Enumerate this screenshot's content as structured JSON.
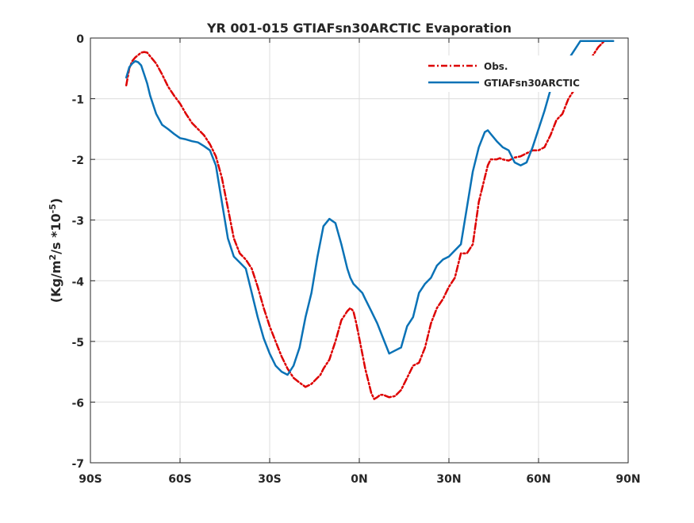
{
  "chart_data": {
    "type": "line",
    "title": "YR 001-015 GTIAFsn30ARCTIC Evaporation",
    "ylabel_parts": {
      "open": "(Kg/m",
      "sup1": "2",
      "mid": "/s *10",
      "sup2": "-5",
      "close": ")"
    },
    "xlim": [
      -90,
      90
    ],
    "ylim": [
      -7,
      0
    ],
    "xticks": [
      -90,
      -60,
      -30,
      0,
      30,
      60,
      90
    ],
    "xtick_labels": [
      "90S",
      "60S",
      "30S",
      "0N",
      "30N",
      "60N",
      "90N"
    ],
    "yticks": [
      0,
      -1,
      -2,
      -3,
      -4,
      -5,
      -6,
      -7
    ],
    "ytick_labels": [
      "0",
      "-1",
      "-2",
      "-3",
      "-4",
      "-5",
      "-6",
      "-7"
    ],
    "grid": true,
    "legend_position": "top-right",
    "series": [
      {
        "name": "Obs.",
        "color": "#dd0000",
        "style": "dashdot",
        "x": [
          -78,
          -77,
          -76,
          -75,
          -74,
          -73,
          -72,
          -71,
          -70,
          -68,
          -66,
          -64,
          -62,
          -60,
          -58,
          -56,
          -54,
          -52,
          -50,
          -48,
          -46,
          -44,
          -42,
          -40,
          -38,
          -36,
          -34,
          -32,
          -30,
          -28,
          -26,
          -24,
          -22,
          -20,
          -18,
          -16,
          -14,
          -13,
          -12,
          -10,
          -8,
          -6,
          -4,
          -3,
          -2,
          -1,
          0,
          1,
          2,
          3,
          4,
          5,
          6,
          7,
          8,
          9,
          10,
          12,
          14,
          16,
          18,
          20,
          22,
          24,
          26,
          28,
          30,
          32,
          34,
          36,
          38,
          40,
          42,
          43,
          44,
          46,
          47,
          48,
          50,
          52,
          54,
          56,
          58,
          60,
          62,
          64,
          66,
          68,
          70,
          72,
          74,
          76,
          78,
          80,
          82,
          84,
          85
        ],
        "y": [
          -0.78,
          -0.5,
          -0.38,
          -0.32,
          -0.28,
          -0.24,
          -0.23,
          -0.24,
          -0.3,
          -0.42,
          -0.6,
          -0.8,
          -0.95,
          -1.08,
          -1.25,
          -1.4,
          -1.5,
          -1.6,
          -1.75,
          -1.95,
          -2.3,
          -2.8,
          -3.3,
          -3.55,
          -3.65,
          -3.8,
          -4.1,
          -4.45,
          -4.75,
          -5.0,
          -5.25,
          -5.45,
          -5.6,
          -5.68,
          -5.75,
          -5.7,
          -5.6,
          -5.55,
          -5.45,
          -5.3,
          -5.0,
          -4.65,
          -4.5,
          -4.45,
          -4.5,
          -4.7,
          -4.95,
          -5.2,
          -5.45,
          -5.65,
          -5.85,
          -5.95,
          -5.92,
          -5.88,
          -5.88,
          -5.9,
          -5.92,
          -5.9,
          -5.8,
          -5.6,
          -5.4,
          -5.35,
          -5.1,
          -4.7,
          -4.45,
          -4.3,
          -4.1,
          -3.95,
          -3.55,
          -3.55,
          -3.4,
          -2.7,
          -2.3,
          -2.1,
          -2.0,
          -2.0,
          -1.98,
          -2.0,
          -2.02,
          -1.97,
          -1.95,
          -1.9,
          -1.85,
          -1.85,
          -1.8,
          -1.6,
          -1.35,
          -1.25,
          -1.0,
          -0.85,
          -0.6,
          -0.45,
          -0.3,
          -0.15,
          -0.05,
          -0.05,
          -0.05
        ]
      },
      {
        "name": "GTIAFsn30ARCTIC",
        "color": "#0a72b6",
        "style": "solid",
        "x": [
          -78,
          -77,
          -76,
          -75,
          -74,
          -73,
          -72,
          -71,
          -70,
          -68,
          -66,
          -64,
          -62,
          -60,
          -58,
          -56,
          -54,
          -52,
          -50,
          -48,
          -46,
          -44,
          -42,
          -40,
          -38,
          -36,
          -34,
          -32,
          -30,
          -28,
          -26,
          -24,
          -22,
          -20,
          -18,
          -16,
          -14,
          -12,
          -10,
          -8,
          -6,
          -4,
          -3,
          -2,
          -1,
          0,
          1,
          2,
          3,
          4,
          5,
          6,
          8,
          10,
          12,
          14,
          16,
          18,
          20,
          22,
          24,
          26,
          28,
          30,
          32,
          34,
          36,
          38,
          40,
          42,
          43,
          44,
          46,
          48,
          50,
          52,
          54,
          56,
          58,
          60,
          62,
          64,
          65,
          66,
          68,
          70,
          72,
          74,
          76,
          78,
          80,
          82,
          84,
          85
        ],
        "y": [
          -0.65,
          -0.48,
          -0.42,
          -0.38,
          -0.4,
          -0.45,
          -0.6,
          -0.75,
          -0.95,
          -1.25,
          -1.43,
          -1.5,
          -1.58,
          -1.65,
          -1.67,
          -1.7,
          -1.72,
          -1.78,
          -1.85,
          -2.1,
          -2.7,
          -3.3,
          -3.6,
          -3.7,
          -3.8,
          -4.2,
          -4.6,
          -4.95,
          -5.2,
          -5.4,
          -5.5,
          -5.55,
          -5.4,
          -5.1,
          -4.6,
          -4.2,
          -3.6,
          -3.1,
          -2.98,
          -3.05,
          -3.4,
          -3.8,
          -3.95,
          -4.05,
          -4.1,
          -4.15,
          -4.2,
          -4.3,
          -4.4,
          -4.5,
          -4.6,
          -4.7,
          -4.95,
          -5.2,
          -5.15,
          -5.1,
          -4.75,
          -4.6,
          -4.2,
          -4.05,
          -3.95,
          -3.75,
          -3.65,
          -3.6,
          -3.5,
          -3.4,
          -2.8,
          -2.2,
          -1.8,
          -1.55,
          -1.52,
          -1.58,
          -1.7,
          -1.8,
          -1.85,
          -2.05,
          -2.1,
          -2.05,
          -1.8,
          -1.5,
          -1.2,
          -0.85,
          -0.85,
          -0.85,
          -0.6,
          -0.35,
          -0.2,
          -0.05,
          -0.05,
          -0.05,
          -0.05,
          -0.05,
          -0.05,
          -0.05
        ]
      }
    ]
  }
}
